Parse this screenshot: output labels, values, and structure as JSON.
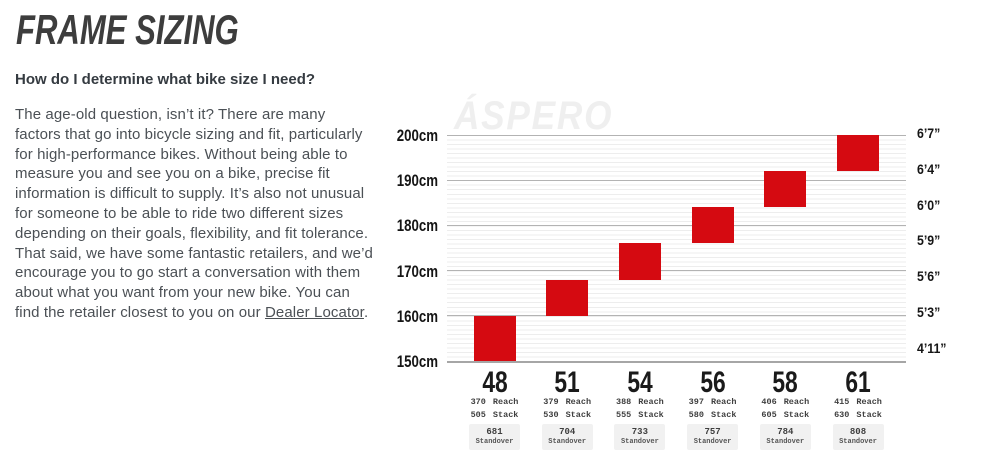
{
  "header": {
    "title": "FRAME SIZING"
  },
  "intro": {
    "question": "How do I determine what bike size I need?",
    "paragraph_before_link": "The age-old question, isn’t it? There are many factors that go into bicycle sizing and fit, particularly for high-performance bikes. Without being able to measure you and see you on a bike, precise fit information is difficult to supply. It’s also not unusual for someone to be able to ride two different sizes depending on their goals, flexibility, and fit tolerance. That said, we have some fantastic retailers, and we’d encourage you to go start a conversation with them about what you want from your new bike. You can find the retailer closest to you on our ",
    "link_text": "Dealer Locator",
    "paragraph_after_link": "."
  },
  "chart_data": {
    "type": "bar",
    "watermark": "ÁSPERO",
    "bar_color": "#d50a11",
    "orientation": "floating-vertical-ranges",
    "ylim_cm": [
      150,
      200
    ],
    "grid": {
      "major_every_cm": 10,
      "minor_every_cm": 1
    },
    "left_axis": {
      "unit": "cm",
      "ticks_cm": [
        200,
        190,
        180,
        170,
        160,
        150
      ],
      "labels": [
        "200cm",
        "190cm",
        "180cm",
        "170cm",
        "160cm",
        "150cm"
      ]
    },
    "right_axis": {
      "unit": "ft-in",
      "labels": [
        "6’7”",
        "6’4”",
        "6’0”",
        "5’9”",
        "5’6”",
        "5’3”",
        "4’11”"
      ]
    },
    "labels": {
      "reach": "Reach",
      "stack": "Stack",
      "standover": "Standover"
    },
    "sizes": [
      {
        "size": "48",
        "rider_height_cm": [
          150,
          160
        ],
        "reach_mm": 370,
        "stack_mm": 505,
        "standover_mm": 681
      },
      {
        "size": "51",
        "rider_height_cm": [
          160,
          168
        ],
        "reach_mm": 379,
        "stack_mm": 530,
        "standover_mm": 704
      },
      {
        "size": "54",
        "rider_height_cm": [
          168,
          176
        ],
        "reach_mm": 388,
        "stack_mm": 555,
        "standover_mm": 733
      },
      {
        "size": "56",
        "rider_height_cm": [
          176,
          184
        ],
        "reach_mm": 397,
        "stack_mm": 580,
        "standover_mm": 757
      },
      {
        "size": "58",
        "rider_height_cm": [
          184,
          192
        ],
        "reach_mm": 406,
        "stack_mm": 605,
        "standover_mm": 784
      },
      {
        "size": "61",
        "rider_height_cm": [
          192,
          200
        ],
        "reach_mm": 415,
        "stack_mm": 630,
        "standover_mm": 808
      }
    ]
  }
}
